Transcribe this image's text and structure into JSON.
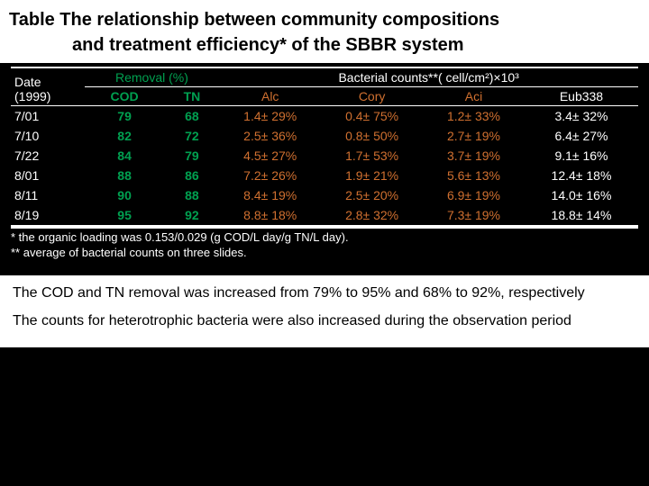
{
  "title": {
    "line1": "Table  The relationship between community compositions",
    "line2": "and treatment efficiency* of the SBBR system"
  },
  "table": {
    "header": {
      "date_label": "Date",
      "date_sub": "(1999)",
      "removal_label": "Removal (%)",
      "bacterial_label": "Bacterial counts**( cell/cm²)×10³",
      "cod": "COD",
      "tn": "TN",
      "alc": "Alc",
      "cory": "Cory",
      "aci": "Aci",
      "eub": "Eub338"
    },
    "rows": [
      {
        "date": "7/01",
        "cod": "79",
        "tn": "68",
        "alc": "1.4± 29%",
        "cory": "0.4± 75%",
        "aci": "1.2± 33%",
        "eub": "3.4± 32%"
      },
      {
        "date": "7/10",
        "cod": "82",
        "tn": "72",
        "alc": "2.5± 36%",
        "cory": "0.8± 50%",
        "aci": "2.7± 19%",
        "eub": "6.4± 27%"
      },
      {
        "date": "7/22",
        "cod": "84",
        "tn": "79",
        "alc": "4.5± 27%",
        "cory": "1.7± 53%",
        "aci": "3.7± 19%",
        "eub": "9.1± 16%"
      },
      {
        "date": "8/01",
        "cod": "88",
        "tn": "86",
        "alc": "7.2± 26%",
        "cory": "1.9± 21%",
        "aci": "5.6± 13%",
        "eub": "12.4± 18%"
      },
      {
        "date": "8/11",
        "cod": "90",
        "tn": "88",
        "alc": "8.4± 19%",
        "cory": "2.5± 20%",
        "aci": "6.9± 19%",
        "eub": "14.0± 16%"
      },
      {
        "date": "8/19",
        "cod": "95",
        "tn": "92",
        "alc": "8.8± 18%",
        "cory": "2.8± 32%",
        "aci": "7.3± 19%",
        "eub": "18.8± 14%"
      }
    ]
  },
  "footnotes": {
    "f1": "*  the organic loading was 0.153/0.029 (g COD/L day/g TN/L day).",
    "f2": "** average of bacterial counts on three slides."
  },
  "paragraphs": {
    "p1": "The COD and TN removal was increased from 79% to 95% and 68% to 92%, respectively",
    "p2": "The counts for heterotrophic bacteria were also increased during the observation period"
  },
  "colors": {
    "background": "#000000",
    "text_white": "#ffffff",
    "title_bg": "#ffffff",
    "green": "#00a050",
    "orange": "#d07030"
  }
}
